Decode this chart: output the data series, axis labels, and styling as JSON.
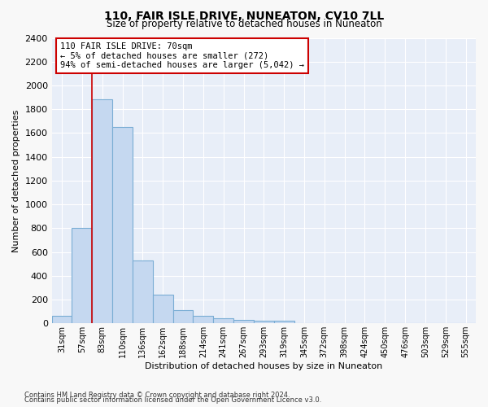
{
  "title1": "110, FAIR ISLE DRIVE, NUNEATON, CV10 7LL",
  "title2": "Size of property relative to detached houses in Nuneaton",
  "xlabel": "Distribution of detached houses by size in Nuneaton",
  "ylabel": "Number of detached properties",
  "bar_labels": [
    "31sqm",
    "57sqm",
    "83sqm",
    "110sqm",
    "136sqm",
    "162sqm",
    "188sqm",
    "214sqm",
    "241sqm",
    "267sqm",
    "293sqm",
    "319sqm",
    "345sqm",
    "372sqm",
    "398sqm",
    "424sqm",
    "450sqm",
    "476sqm",
    "503sqm",
    "529sqm",
    "555sqm"
  ],
  "bar_values": [
    60,
    800,
    1880,
    1650,
    530,
    240,
    110,
    60,
    45,
    30,
    20,
    20,
    0,
    0,
    0,
    0,
    0,
    0,
    0,
    0,
    0
  ],
  "bar_color": "#c5d8f0",
  "bar_edge_color": "#7aadd4",
  "red_line_x": 1.5,
  "annotation_text": "110 FAIR ISLE DRIVE: 70sqm\n← 5% of detached houses are smaller (272)\n94% of semi-detached houses are larger (5,042) →",
  "annotation_box_color": "#ffffff",
  "annotation_box_edge": "#cc0000",
  "ylim": [
    0,
    2400
  ],
  "yticks": [
    0,
    200,
    400,
    600,
    800,
    1000,
    1200,
    1400,
    1600,
    1800,
    2000,
    2200,
    2400
  ],
  "plot_bg_color": "#e8eef8",
  "fig_bg_color": "#f8f8f8",
  "grid_color": "#ffffff",
  "footer1": "Contains HM Land Registry data © Crown copyright and database right 2024.",
  "footer2": "Contains public sector information licensed under the Open Government Licence v3.0."
}
